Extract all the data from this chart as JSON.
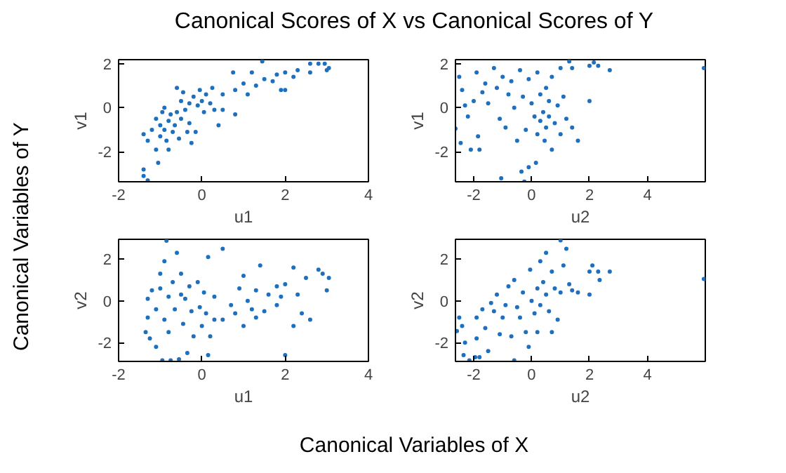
{
  "chart_data": [
    {
      "type": "scatter",
      "title": "Canonical Scores of X vs Canonical Scores of Y",
      "annotations": [
        "Canonical Variables of X",
        "Canonical Variables of Y"
      ],
      "xlabel": "u1",
      "ylabel": "v1",
      "xlim": [
        -2,
        4
      ],
      "ylim": [
        -3.36,
        2.18
      ],
      "xticks": [
        -2,
        0,
        2,
        4
      ],
      "yticks": [
        -2,
        0,
        2
      ],
      "grid": false,
      "marker": "circle",
      "color": "#1f6fbf",
      "x": [
        -1.4,
        -1.4,
        -1.3,
        -1.4,
        -1.3,
        -1.2,
        -1.1,
        -1.1,
        -1.05,
        -1.0,
        -1.0,
        -0.95,
        -0.9,
        -0.9,
        -0.85,
        -0.8,
        -0.8,
        -0.75,
        -0.7,
        -0.65,
        -0.6,
        -0.6,
        -0.55,
        -0.5,
        -0.5,
        -0.45,
        -0.4,
        -0.35,
        -0.3,
        -0.3,
        -0.25,
        -0.2,
        -0.15,
        -0.1,
        -0.05,
        0.0,
        0.05,
        0.1,
        0.2,
        0.25,
        0.3,
        0.4,
        0.5,
        0.5,
        0.75,
        0.8,
        0.8,
        1.0,
        1.1,
        1.2,
        1.3,
        1.45,
        1.5,
        1.7,
        1.8,
        1.9,
        2.0,
        2.0,
        2.2,
        2.3,
        2.6,
        2.6,
        2.8,
        2.95,
        3.0,
        3.05
      ],
      "values": [
        -2.8,
        -3.1,
        -3.3,
        -1.2,
        -1.5,
        -1.0,
        -0.5,
        -1.9,
        -2.5,
        -1.3,
        -0.8,
        -0.2,
        -1.0,
        0.0,
        -1.5,
        -0.6,
        -1.9,
        -0.3,
        -1.1,
        -0.8,
        0.9,
        -0.2,
        -1.4,
        -0.5,
        0.3,
        0.7,
        -0.1,
        -1.1,
        0.2,
        -0.7,
        -1.6,
        0.5,
        -1.1,
        0.1,
        0.8,
        0.3,
        -0.2,
        0.6,
        0.2,
        0.9,
        -0.1,
        -0.8,
        0.6,
        -0.1,
        1.6,
        -0.3,
        0.8,
        1.1,
        0.6,
        1.6,
        1.0,
        2.1,
        1.3,
        1.2,
        1.5,
        0.8,
        0.8,
        1.6,
        1.4,
        1.7,
        1.6,
        2.0,
        2.0,
        2.0,
        1.7,
        1.8
      ]
    },
    {
      "type": "scatter",
      "xlabel": "u2",
      "ylabel": "v1",
      "xlim": [
        -2.63,
        6.0
      ],
      "ylim": [
        -3.36,
        2.18
      ],
      "xticks": [
        -2,
        0,
        2,
        4
      ],
      "yticks": [
        -2,
        0,
        2
      ],
      "grid": false,
      "marker": "circle",
      "color": "#1f6fbf",
      "x": [
        -2.63,
        -2.5,
        -2.45,
        -2.4,
        -2.3,
        -2.2,
        -2.1,
        -2.0,
        -1.9,
        -1.85,
        -1.8,
        -1.7,
        -1.6,
        -1.5,
        -1.3,
        -1.2,
        -1.1,
        -1.05,
        -1.0,
        -0.9,
        -0.8,
        -0.7,
        -0.6,
        -0.5,
        -0.4,
        -0.35,
        -0.3,
        -0.25,
        -0.2,
        -0.1,
        -0.1,
        0.0,
        0.1,
        0.15,
        0.2,
        0.2,
        0.3,
        0.3,
        0.4,
        0.45,
        0.5,
        0.5,
        0.6,
        0.6,
        0.7,
        0.7,
        0.8,
        0.9,
        1.0,
        1.0,
        1.1,
        1.2,
        1.3,
        1.4,
        1.4,
        1.6,
        2.0,
        2.0,
        2.15,
        2.3,
        2.7,
        5.95
      ],
      "values": [
        -0.95,
        1.4,
        -1.6,
        0.8,
        0.1,
        -0.4,
        -1.9,
        0.3,
        1.6,
        -1.3,
        -1.9,
        0.7,
        1.1,
        0.2,
        1.8,
        0.9,
        -0.5,
        -3.2,
        1.4,
        -0.9,
        0.6,
        1.2,
        0.0,
        -1.5,
        1.7,
        -2.9,
        0.5,
        -3.35,
        -1.0,
        1.3,
        -2.7,
        0.2,
        -0.4,
        -2.5,
        1.6,
        -1.2,
        -0.6,
        0.6,
        -0.2,
        -1.5,
        0.9,
        -0.9,
        -0.4,
        0.3,
        1.4,
        -1.9,
        -0.7,
        0.1,
        1.8,
        -1.2,
        0.5,
        -0.5,
        2.1,
        1.8,
        -0.9,
        -1.5,
        0.3,
        1.9,
        2.05,
        1.9,
        1.7,
        1.8
      ]
    },
    {
      "type": "scatter",
      "xlabel": "u1",
      "ylabel": "v2",
      "xlim": [
        -2,
        4
      ],
      "ylim": [
        -2.9,
        2.95
      ],
      "xticks": [
        -2,
        0,
        2,
        4
      ],
      "yticks": [
        -2,
        0,
        2
      ],
      "grid": false,
      "marker": "circle",
      "color": "#1f6fbf",
      "x": [
        -1.35,
        -1.3,
        -1.3,
        -1.25,
        -1.2,
        -1.1,
        -1.1,
        -1.0,
        -1.0,
        -0.95,
        -0.9,
        -0.9,
        -0.85,
        -0.8,
        -0.8,
        -0.75,
        -0.7,
        -0.65,
        -0.6,
        -0.55,
        -0.5,
        -0.5,
        -0.45,
        -0.4,
        -0.35,
        -0.3,
        -0.25,
        -0.2,
        -0.1,
        -0.05,
        0.0,
        0.05,
        0.1,
        0.15,
        0.15,
        0.2,
        0.3,
        0.3,
        0.5,
        0.5,
        0.7,
        0.8,
        0.9,
        1.0,
        1.0,
        1.1,
        1.2,
        1.3,
        1.3,
        1.4,
        1.5,
        1.6,
        1.8,
        1.8,
        1.9,
        2.0,
        2.0,
        2.2,
        2.2,
        2.3,
        2.4,
        2.5,
        2.6,
        2.8,
        2.9,
        3.0,
        3.05
      ],
      "values": [
        -1.5,
        -0.8,
        0.1,
        -1.8,
        0.5,
        -2.2,
        -0.4,
        1.3,
        0.6,
        -2.85,
        -0.9,
        1.9,
        2.88,
        0.2,
        -1.5,
        -2.85,
        0.9,
        -0.4,
        2.3,
        -2.8,
        0.3,
        1.3,
        -1.1,
        0.1,
        -2.5,
        0.7,
        -0.5,
        -1.7,
        0.9,
        -0.3,
        -1.2,
        0.4,
        -0.6,
        2.1,
        -2.6,
        -1.7,
        0.2,
        -0.9,
        2.5,
        -0.9,
        -0.2,
        -0.6,
        0.6,
        1.2,
        -1.2,
        0.0,
        -0.4,
        -0.8,
        0.5,
        1.7,
        -0.5,
        0.3,
        0.7,
        -0.2,
        0.2,
        0.8,
        -2.6,
        1.6,
        -1.2,
        0.3,
        -0.6,
        1.1,
        -0.9,
        1.5,
        1.3,
        0.5,
        1.1
      ]
    },
    {
      "type": "scatter",
      "xlabel": "u2",
      "ylabel": "v2",
      "xlim": [
        -2.63,
        6.0
      ],
      "ylim": [
        -2.9,
        2.95
      ],
      "xticks": [
        -2,
        0,
        2,
        4
      ],
      "yticks": [
        -2,
        0,
        2
      ],
      "grid": false,
      "marker": "circle",
      "color": "#1f6fbf",
      "x": [
        -2.58,
        -2.5,
        -2.4,
        -2.3,
        -2.35,
        -2.15,
        -1.95,
        -1.9,
        -1.8,
        -1.9,
        -1.7,
        -1.6,
        -1.5,
        -1.4,
        -1.3,
        -1.2,
        -1.1,
        -1.0,
        -0.9,
        -0.8,
        -0.7,
        -0.6,
        -0.6,
        -0.5,
        -0.4,
        -0.3,
        -0.2,
        -0.1,
        -0.05,
        0.0,
        0.1,
        0.2,
        0.2,
        0.3,
        0.3,
        0.4,
        0.5,
        0.5,
        0.6,
        0.7,
        0.7,
        0.8,
        0.9,
        1.0,
        1.0,
        1.1,
        1.2,
        1.3,
        1.4,
        1.6,
        2.0,
        2.0,
        2.1,
        2.3,
        2.35,
        2.7,
        5.95
      ],
      "values": [
        -1.45,
        -0.8,
        -1.2,
        -2.0,
        -2.6,
        -2.85,
        -2.7,
        -1.8,
        -2.7,
        -0.8,
        -0.4,
        -1.3,
        -2.4,
        -0.1,
        -0.5,
        0.3,
        -1.6,
        -0.8,
        -0.2,
        0.7,
        -1.7,
        -2.85,
        1.0,
        -0.3,
        -0.8,
        0.4,
        -1.5,
        -2.2,
        1.5,
        0.0,
        -0.6,
        0.6,
        -1.5,
        1.9,
        -0.2,
        0.9,
        0.3,
        2.3,
        -0.5,
        1.4,
        -1.5,
        0.6,
        -0.9,
        2.9,
        0.4,
        1.7,
        2.5,
        0.8,
        0.5,
        0.4,
        0.3,
        1.4,
        1.7,
        1.4,
        1.0,
        1.4,
        1.05
      ]
    }
  ]
}
